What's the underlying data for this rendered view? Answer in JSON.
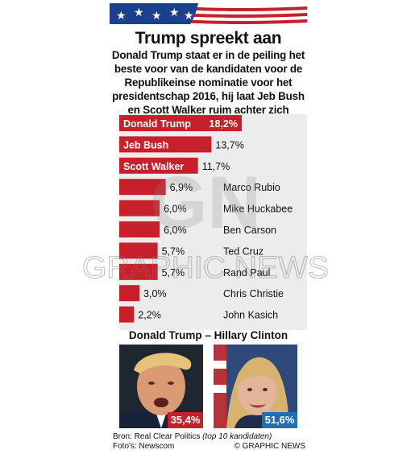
{
  "title": "Trump spreekt aan",
  "subtitle": "Donald Trump staat er in de peiling het beste voor van de kandidaten voor de Republikeinse nominatie voor het presidentschap 2016, hij laat Jeb Bush en Scott Walker ruim achter zich",
  "colors": {
    "bar": "#c8202b",
    "chart_bg": "#ececec",
    "red_box": "#c8202b",
    "blue_box": "#1f6fb5"
  },
  "chart_data": {
    "type": "bar",
    "orientation": "horizontal",
    "categories": [
      "Donald Trump",
      "Jeb Bush",
      "Scott Walker",
      "Marco Rubio",
      "Mike Huckabee",
      "Ben Carson",
      "Ted Cruz",
      "Rand Paul",
      "Chris Christie",
      "John Kasich"
    ],
    "values": [
      18.2,
      13.7,
      11.7,
      6.9,
      6.0,
      6.0,
      5.7,
      5.7,
      3.0,
      2.2
    ],
    "value_labels": [
      "18,2%",
      "13,7%",
      "11,7%",
      "6,9%",
      "6,0%",
      "6,0%",
      "5,7%",
      "5,7%",
      "3,0%",
      "2,2%"
    ],
    "unit": "%",
    "grid": false
  },
  "matchup": {
    "title": "Donald Trump – Hillary Clinton",
    "candidates": [
      {
        "name": "Donald Trump",
        "value": 35.4,
        "label": "35,4%",
        "color": "#c8202b"
      },
      {
        "name": "Hillary Clinton",
        "value": 51.6,
        "label": "51,6%",
        "color": "#1f6fb5"
      }
    ]
  },
  "footer": {
    "source_prefix": "Bron: Real Clear Politics",
    "source_note": "(top 10 kandidaten)",
    "photos": "Foto's: Newscom",
    "credit": "© GRAPHIC NEWS"
  },
  "watermark": {
    "monogram": "GN",
    "text": "GRAPHIC NEWS"
  }
}
